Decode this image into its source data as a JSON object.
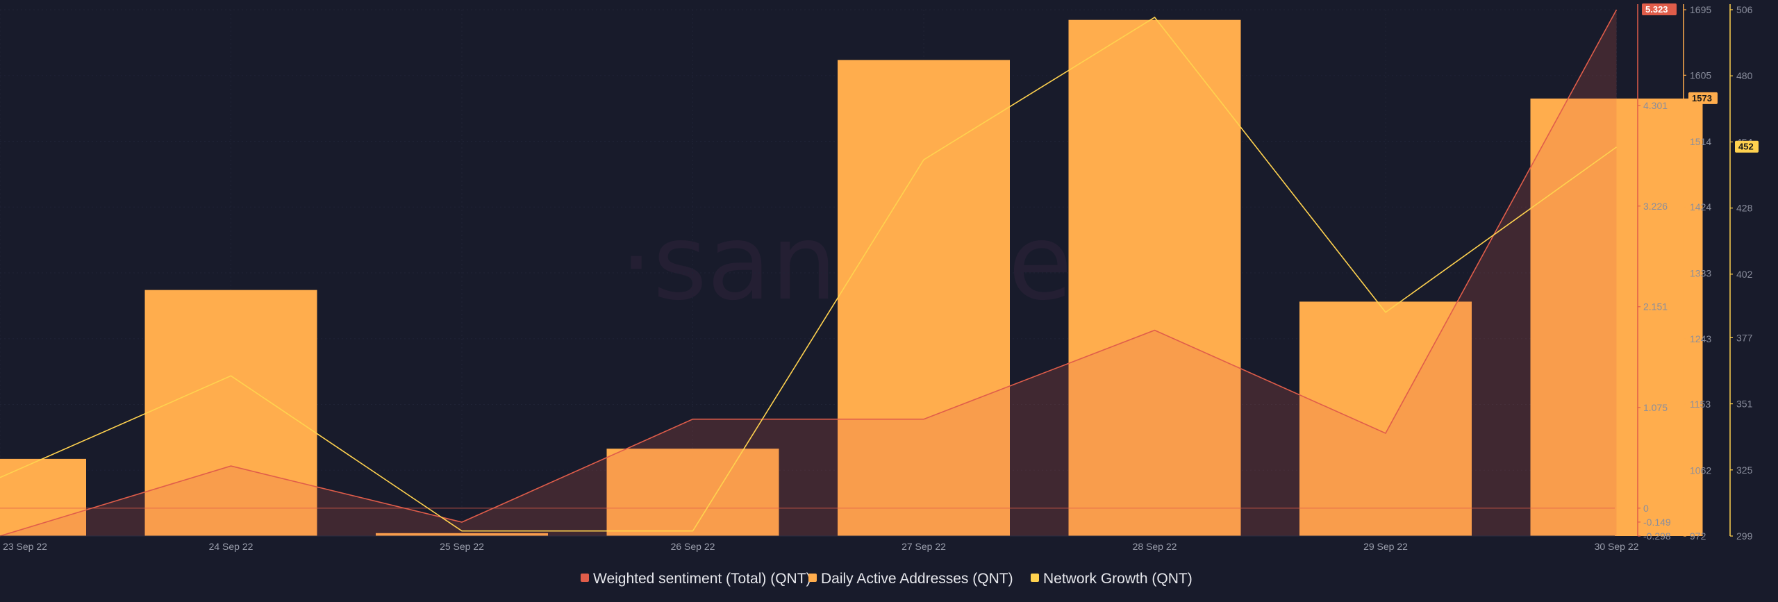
{
  "watermark": "·santiment",
  "colors": {
    "background": "#181b2b",
    "sentiment": "#e05d4a",
    "daa_bar": "#ffad4d",
    "network_growth": "#ffd24f"
  },
  "chart_data": {
    "type": "bar",
    "categories": [
      "23 Sep 22",
      "24 Sep 22",
      "25 Sep 22",
      "26 Sep 22",
      "27 Sep 22",
      "28 Sep 22",
      "29 Sep 22",
      "30 Sep 22"
    ],
    "legend_position": "bottom-center",
    "grid": true,
    "series": [
      {
        "name": "Weighted sentiment (Total) (QNT)",
        "type": "area",
        "axis": "sentiment",
        "color": "#e05d4a",
        "values": [
          -0.298,
          0.45,
          -0.15,
          0.95,
          0.95,
          1.9,
          0.8,
          5.323
        ]
      },
      {
        "name": "Daily Active Addresses (QNT)",
        "type": "bar",
        "axis": "daa",
        "color": "#ffad4d",
        "values": [
          1078,
          1310,
          976,
          1092,
          1626,
          1681,
          1294,
          1573
        ]
      },
      {
        "name": "Network Growth (QNT)",
        "type": "line",
        "axis": "network_growth",
        "color": "#ffd24f",
        "values": [
          322,
          362,
          301,
          301,
          447,
          503,
          387,
          452
        ]
      }
    ],
    "axes": {
      "sentiment": {
        "ylim": [
          -0.298,
          5.323
        ],
        "ticks": [
          "-0.298",
          "-0.149",
          "0",
          "1.075",
          "2.151",
          "3.226",
          "4.301"
        ],
        "tick_values": [
          -0.298,
          -0.149,
          0,
          1.075,
          2.151,
          3.226,
          4.301
        ],
        "current": "5.323"
      },
      "daa": {
        "ylim": [
          972,
          1695
        ],
        "ticks": [
          "972",
          "1062",
          "1153",
          "1243",
          "1333",
          "1424",
          "1514",
          "1605",
          "1695"
        ],
        "tick_values": [
          972,
          1062,
          1153,
          1243,
          1333,
          1424,
          1514,
          1605,
          1695
        ],
        "current": "1573"
      },
      "network_growth": {
        "ylim": [
          299,
          506
        ],
        "ticks": [
          "299",
          "325",
          "351",
          "377",
          "402",
          "428",
          "454",
          "480",
          "506"
        ],
        "tick_values": [
          299,
          325,
          351,
          377,
          402,
          428,
          454,
          480,
          506
        ],
        "current": "452"
      }
    }
  }
}
